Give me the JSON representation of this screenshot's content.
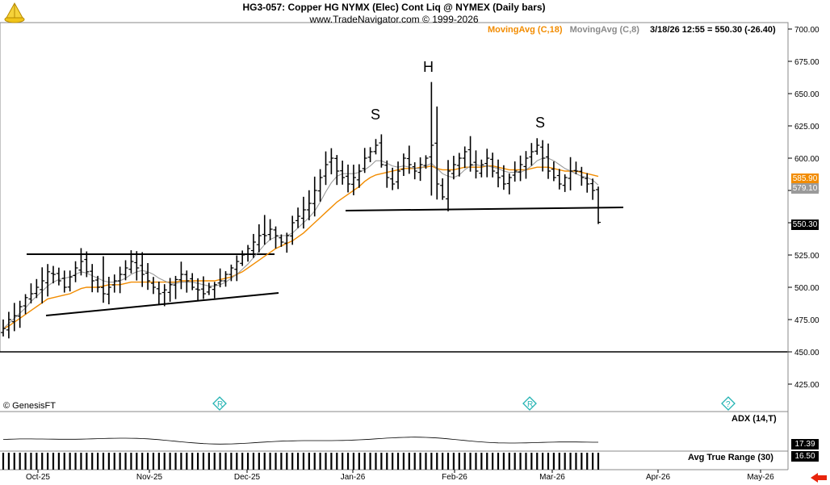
{
  "header": {
    "title": "HG3-057:  Copper HG NYMX (Elec) Cont Liq @ NYMEX  (Daily bars)",
    "subtitle": "www.TradeNavigator.com © 1999-2026",
    "ma18_label": "MovingAvg (C,18)",
    "ma8_label": "MovingAvg (C,8)",
    "last_quote": "3/18/26 12:55 = 550.30 (-26.40)",
    "copyright": "© GenesisFT"
  },
  "colors": {
    "ma18": "#f28c00",
    "ma8": "#9a9a9a",
    "bars": "#000000",
    "last_price_box": "#000000",
    "nav_arrow": "#e8240c",
    "marker": "#23b3b3"
  },
  "price_boxes": {
    "ma18": "585.90",
    "ma8": "579.10",
    "last": "550.30"
  },
  "indicators": {
    "adx_label": "ADX (14,T)",
    "adx_value": "17.39",
    "atr_label": "Avg True Range (30)",
    "atr_value": "16.50"
  },
  "annotations": {
    "left_shoulder": "S",
    "head": "H",
    "right_shoulder": "S"
  },
  "chart_data": {
    "type": "bar",
    "title": "HG3-057:  Copper HG NYMX (Elec) Cont Liq @ NYMEX  (Daily bars)",
    "y_ticks": [
      "700.00",
      "675.00",
      "650.00",
      "625.00",
      "600.00",
      "575.00",
      "550.00",
      "525.00",
      "500.00",
      "475.00",
      "450.00",
      "425.00"
    ],
    "ylim": [
      405,
      715
    ],
    "x_labels": [
      "Oct-25",
      "Nov-25",
      "Dec-25",
      "Jan-26",
      "Feb-26",
      "Mar-26",
      "Apr-26",
      "May-26"
    ],
    "closes": [
      468,
      475,
      478,
      485,
      492,
      495,
      500,
      505,
      512,
      510,
      505,
      500,
      508,
      515,
      520,
      512,
      505,
      500,
      495,
      500,
      505,
      510,
      515,
      520,
      515,
      510,
      505,
      500,
      495,
      498,
      502,
      506,
      510,
      505,
      500,
      498,
      495,
      500,
      502,
      505,
      510,
      515,
      520,
      525,
      530,
      535,
      540,
      540,
      545,
      540,
      535,
      540,
      550,
      555,
      560,
      565,
      575,
      585,
      595,
      600,
      590,
      585,
      580,
      585,
      590,
      600,
      605,
      610,
      595,
      585,
      580,
      590,
      600,
      595,
      590,
      595,
      600,
      610,
      580,
      570,
      590,
      595,
      600,
      605,
      595,
      590,
      595,
      600,
      590,
      585,
      580,
      585,
      590,
      595,
      600,
      605,
      610,
      600,
      590,
      585,
      580,
      585,
      590,
      590,
      585,
      580,
      575,
      550.3
    ],
    "ma18": [
      468,
      470,
      473,
      476,
      479,
      482,
      485,
      488,
      491,
      492,
      493,
      494,
      495,
      497,
      499,
      500,
      500,
      500,
      501,
      502,
      502,
      502,
      503,
      504,
      504,
      504,
      504,
      504,
      504,
      504,
      504,
      504,
      505,
      505,
      505,
      505,
      505,
      505,
      505,
      506,
      507,
      508,
      510,
      512,
      515,
      518,
      521,
      524,
      527,
      530,
      532,
      534,
      536,
      539,
      542,
      546,
      550,
      554,
      558,
      562,
      566,
      569,
      572,
      575,
      578,
      582,
      585,
      587,
      588,
      589,
      590,
      591,
      592,
      592,
      592,
      593,
      593,
      594,
      592,
      591,
      591,
      591,
      592,
      593,
      593,
      593,
      593,
      594,
      594,
      593,
      592,
      591,
      591,
      591,
      591,
      592,
      593,
      593,
      593,
      592,
      591,
      590,
      590,
      590,
      589,
      588,
      587,
      585.9
    ],
    "ma8": [
      468,
      472,
      476,
      480,
      484,
      489,
      493,
      497,
      501,
      504,
      506,
      507,
      508,
      510,
      512,
      511,
      509,
      507,
      505,
      504,
      504,
      505,
      507,
      510,
      512,
      513,
      512,
      510,
      507,
      505,
      503,
      503,
      504,
      504,
      504,
      503,
      502,
      501,
      501,
      502,
      504,
      507,
      510,
      514,
      518,
      523,
      528,
      533,
      537,
      539,
      540,
      540,
      542,
      546,
      550,
      554,
      559,
      566,
      574,
      581,
      586,
      588,
      588,
      588,
      589,
      591,
      594,
      598,
      598,
      596,
      594,
      593,
      594,
      593,
      592,
      592,
      594,
      596,
      592,
      588,
      586,
      585,
      587,
      591,
      594,
      595,
      594,
      594,
      593,
      592,
      590,
      589,
      589,
      589,
      591,
      594,
      598,
      600,
      600,
      598,
      595,
      592,
      590,
      588,
      586,
      585,
      583,
      579.1
    ],
    "pattern": "head and shoulders"
  }
}
